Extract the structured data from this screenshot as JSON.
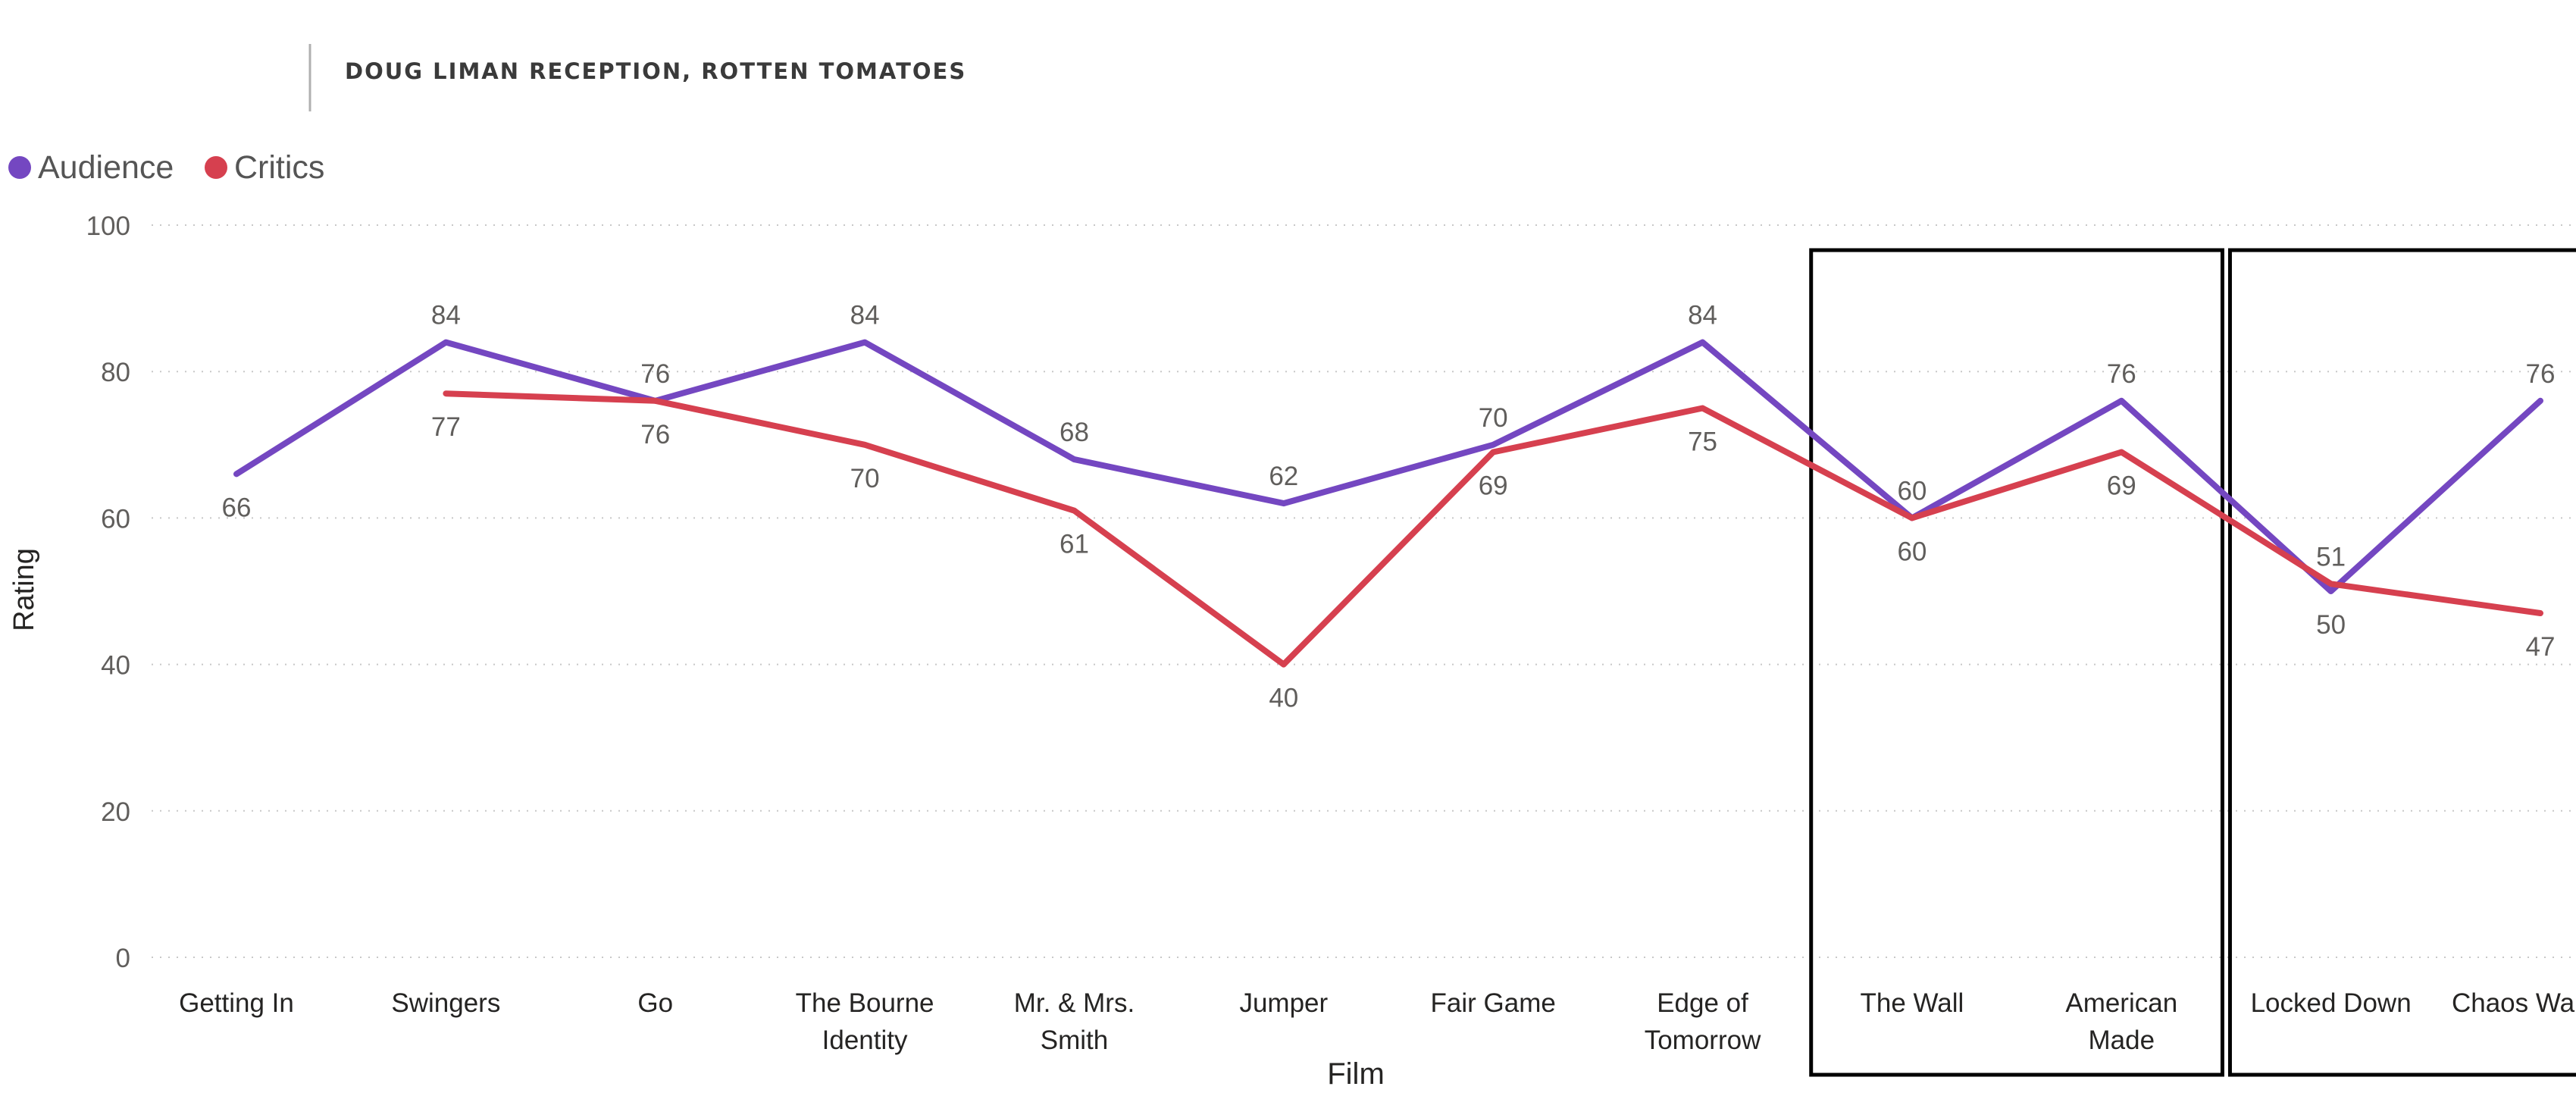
{
  "title": "DOUG LIMAN RECEPTION, ROTTEN TOMATOES",
  "colors": {
    "audience": "#7447c1",
    "critics": "#d6404f"
  },
  "legend": [
    {
      "name": "Audience",
      "color": "#7447c1"
    },
    {
      "name": "Critics",
      "color": "#d6404f"
    }
  ],
  "chart_data": {
    "type": "line",
    "title": "DOUG LIMAN RECEPTION, ROTTEN TOMATOES",
    "xlabel": "Film",
    "ylabel": "Rating",
    "ylim": [
      0,
      100
    ],
    "yticks": [
      0,
      20,
      40,
      60,
      80,
      100
    ],
    "grid": true,
    "legend_position": "top-left",
    "categories": [
      [
        "Getting In"
      ],
      [
        "Swingers"
      ],
      [
        "Go"
      ],
      [
        "The Bourne",
        "Identity"
      ],
      [
        "Mr. & Mrs.",
        "Smith"
      ],
      [
        "Jumper"
      ],
      [
        "Fair Game"
      ],
      [
        "Edge of",
        "Tomorrow"
      ],
      [
        "The Wall"
      ],
      [
        "American",
        "Made"
      ],
      [
        "Locked Down"
      ],
      [
        "Chaos Walking"
      ]
    ],
    "series": [
      {
        "name": "Audience",
        "color": "#7447c1",
        "values": [
          66,
          84,
          76,
          84,
          68,
          62,
          70,
          84,
          60,
          76,
          50,
          76
        ]
      },
      {
        "name": "Critics",
        "color": "#d6404f",
        "values": [
          null,
          77,
          76,
          70,
          61,
          40,
          69,
          75,
          60,
          69,
          51,
          47
        ]
      }
    ],
    "highlight_groups": [
      {
        "from": 8,
        "to": 9
      },
      {
        "from": 10,
        "to": 11
      }
    ]
  }
}
